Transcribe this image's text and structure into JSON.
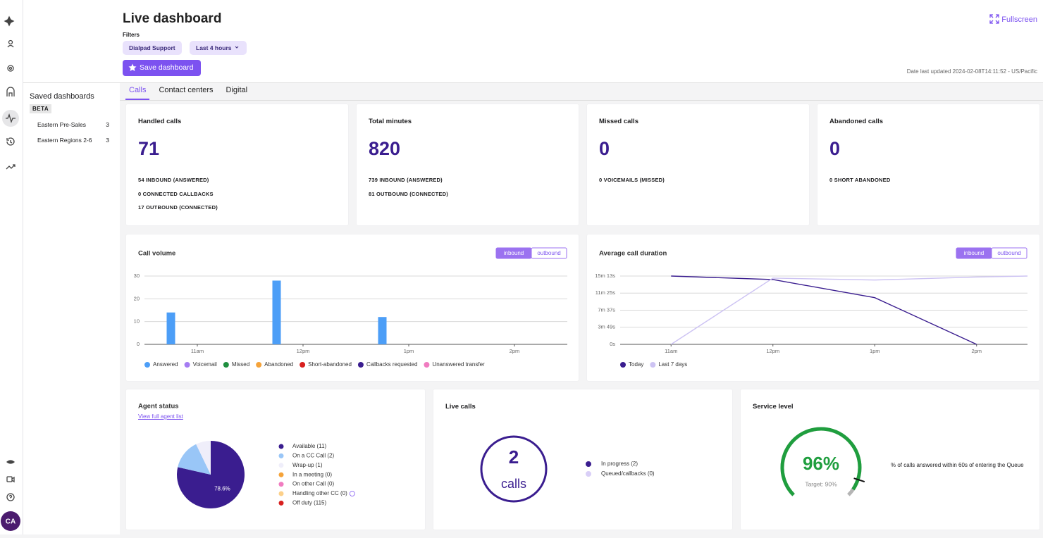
{
  "header": {
    "title": "Live dashboard",
    "filters_label": "Filters",
    "filters": [
      "Dialpad Support",
      "Last 4 hours"
    ],
    "save_button": "Save dashboard",
    "fullscreen": "Fullscreen",
    "last_updated": "Date last updated 2024-02-08T14:11:52 - US/Pacific"
  },
  "sidebar": {
    "avatar": "CA"
  },
  "saved": {
    "title": "Saved dashboards",
    "badge": "BETA",
    "items": [
      {
        "name": "Eastern Pre-Sales",
        "count": 3
      },
      {
        "name": "Eastern Regions 2-6",
        "count": 3
      }
    ]
  },
  "tabs": [
    "Calls",
    "Contact centers",
    "Digital"
  ],
  "stats": [
    {
      "title": "Handled calls",
      "value": 71,
      "details": [
        "54 INBOUND (ANSWERED)",
        "0 CONNECTED CALLBACKS",
        "17 OUTBOUND (CONNECTED)"
      ]
    },
    {
      "title": "Total minutes",
      "value": 820,
      "details": [
        "739 INBOUND (ANSWERED)",
        "81 OUTBOUND (CONNECTED)"
      ]
    },
    {
      "title": "Missed calls",
      "value": 0,
      "details": [
        "0 VOICEMAILS (MISSED)"
      ]
    },
    {
      "title": "Abandoned calls",
      "value": 0,
      "details": [
        "0 SHORT ABANDONED"
      ]
    }
  ],
  "chart_data": [
    {
      "type": "bar",
      "title": "Call volume",
      "toggle": [
        "inbound",
        "outbound"
      ],
      "x": [
        10.75,
        11.75,
        12.75
      ],
      "xlim": [
        10.5,
        14.5
      ],
      "xticks": [
        {
          "value": 11,
          "label": "11am"
        },
        {
          "value": 12,
          "label": "12pm"
        },
        {
          "value": 13,
          "label": "1pm"
        },
        {
          "value": 14,
          "label": "2pm"
        }
      ],
      "ylim": [
        0,
        30
      ],
      "yticks": [
        0,
        10,
        20,
        30
      ],
      "grid": true,
      "series": [
        {
          "name": "Answered",
          "color": "#4c9ef7",
          "values": [
            14,
            28,
            12
          ]
        },
        {
          "name": "Voicemail",
          "color": "#a57cf2",
          "values": [
            0,
            0,
            0
          ]
        },
        {
          "name": "Missed",
          "color": "#1f8f3f",
          "values": [
            0,
            0,
            0
          ]
        },
        {
          "name": "Abandoned",
          "color": "#f5a33a",
          "values": [
            0,
            0,
            0
          ]
        },
        {
          "name": "Short-abandoned",
          "color": "#d8201f",
          "values": [
            0,
            0,
            0
          ]
        },
        {
          "name": "Callbacks requested",
          "color": "#3a1d8f",
          "values": [
            0,
            0,
            0
          ]
        },
        {
          "name": "Unanswered transfer",
          "color": "#f07cc0",
          "values": [
            0,
            0,
            0
          ]
        }
      ]
    },
    {
      "type": "line",
      "title": "Average call duration",
      "toggle": [
        "inbound",
        "outbound"
      ],
      "x": [
        11,
        12,
        13,
        14,
        14.5
      ],
      "xlim": [
        10.5,
        14.5
      ],
      "xticks": [
        {
          "value": 11,
          "label": "11am"
        },
        {
          "value": 12,
          "label": "12pm"
        },
        {
          "value": 13,
          "label": "1pm"
        },
        {
          "value": 14,
          "label": "2pm"
        }
      ],
      "ylim": [
        0,
        913
      ],
      "yticks": [
        {
          "value": 0,
          "label": "0s"
        },
        {
          "value": 229,
          "label": "3m 49s"
        },
        {
          "value": 457,
          "label": "7m 37s"
        },
        {
          "value": 685,
          "label": "11m 25s"
        },
        {
          "value": 913,
          "label": "15m 13s"
        }
      ],
      "grid": true,
      "series": [
        {
          "name": "Today",
          "color": "#3a1d8f",
          "values": [
            913,
            866,
            624,
            0,
            null
          ]
        },
        {
          "name": "Last 7 days",
          "color": "#cdc3f3",
          "values": [
            0,
            885,
            860,
            900,
            913
          ]
        }
      ]
    },
    {
      "type": "pie",
      "title": "Agent status",
      "link": "View full agent list",
      "categories": [
        "Available (11)",
        "On a CC Call (2)",
        "Wrap-up (1)",
        "In a meeting (0)",
        "On other Call (0)",
        "Handling other CC (0)"
      ],
      "values": [
        11,
        2,
        1,
        0,
        0,
        0
      ],
      "value_labels": [
        "78.6%",
        null,
        null,
        null,
        null,
        null
      ],
      "colors": [
        "#3a1d8f",
        "#99c6f7",
        "#efeefa",
        "#f5a33a",
        "#f07cc0",
        "#fcd08a"
      ],
      "extra_legend": [
        {
          "label": "Off duty (115)",
          "color": "#d8201f"
        }
      ]
    }
  ],
  "live_calls": {
    "title": "Live calls",
    "count": "2",
    "unit": "calls",
    "legend": [
      {
        "label": "In progress (2)",
        "color": "#3a1d8f"
      },
      {
        "label": "Queued/callbacks (0)",
        "color": "#d9cff7"
      }
    ]
  },
  "service_level": {
    "title": "Service level",
    "value": 96,
    "value_label": "96%",
    "target": 90,
    "target_label": "Target: 90%",
    "description": "% of calls answered within 60s of entering the Queue"
  }
}
